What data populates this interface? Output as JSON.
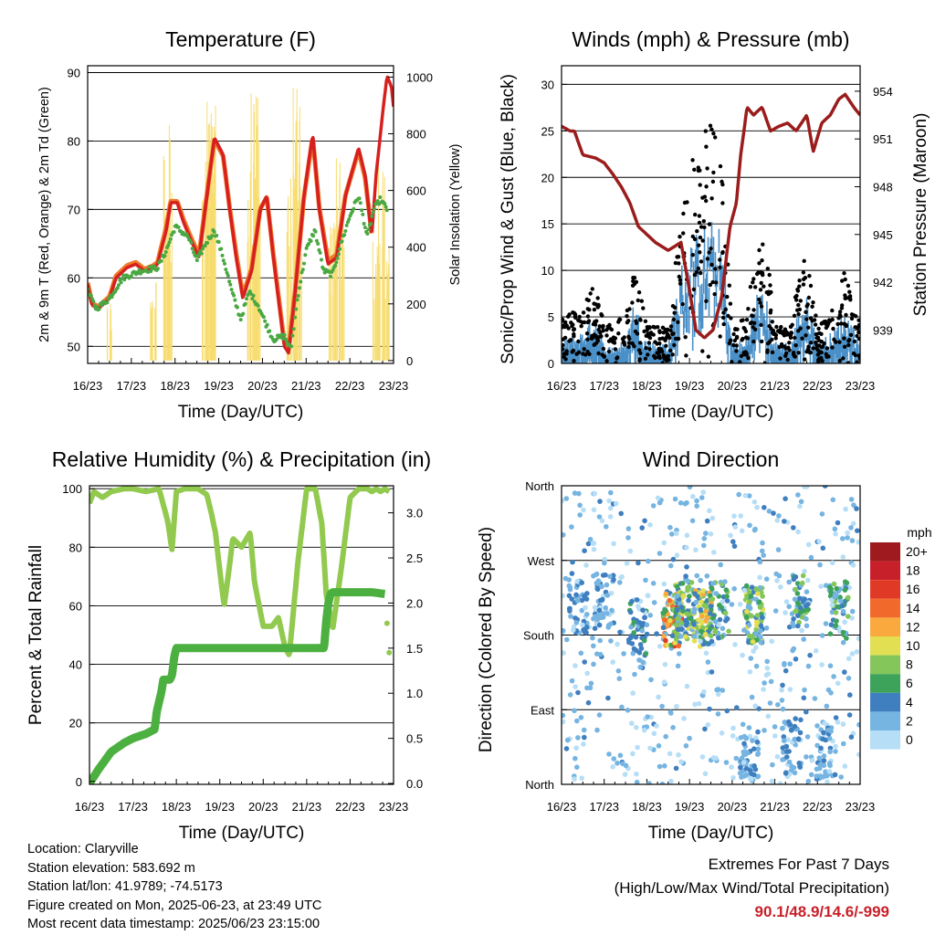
{
  "colors": {
    "t2m": "#d62020",
    "t9m": "#f07a2a",
    "td": "#4aa843",
    "solar": "#f7dc6f",
    "wind": "#4a90c8",
    "gust": "#000000",
    "pressure": "#9b1c1c",
    "rh": "#92c94f",
    "precip": "#4cb040",
    "extremes": "#c8202a"
  },
  "x_ticks": [
    "16/23",
    "17/23",
    "18/23",
    "19/23",
    "20/23",
    "21/23",
    "22/23",
    "23/23"
  ],
  "chart_data": [
    {
      "id": "temperature",
      "type": "line",
      "title": "Temperature (F)",
      "xlabel": "Time (Day/UTC)",
      "ylabel": "2m & 9m T (Red, Orange) & 2m Td (Green)",
      "y2label": "Solar Insolation (Yellow)",
      "ylim": [
        47.5,
        91
      ],
      "yticks": [
        50,
        60,
        70,
        80,
        90
      ],
      "y2lim": [
        -10,
        1040
      ],
      "y2ticks": [
        0,
        200,
        400,
        600,
        800,
        1000
      ],
      "gridlines": [
        50,
        60,
        70,
        80,
        90
      ],
      "series": [
        {
          "key": "t2m",
          "x": [
            0.0,
            0.1,
            0.25,
            0.5,
            0.65,
            0.9,
            1.1,
            1.3,
            1.5,
            1.6,
            1.8,
            1.9,
            2.05,
            2.2,
            2.4,
            2.55,
            2.75,
            2.9,
            3.1,
            3.25,
            3.4,
            3.55,
            3.75,
            3.95,
            4.1,
            4.25,
            4.5,
            4.6,
            4.75,
            4.95,
            5.15,
            5.3,
            5.5,
            5.7,
            5.9,
            6.2,
            6.35,
            6.5,
            6.6,
            6.75,
            6.85,
            6.95,
            7.0
          ],
          "y": [
            59,
            56,
            55.5,
            57,
            60,
            61.5,
            62,
            61,
            61.5,
            62,
            67,
            71,
            71,
            68,
            65,
            63,
            73,
            80.5,
            78,
            70,
            63,
            57,
            61,
            70,
            72,
            63,
            50,
            49,
            58,
            72,
            81,
            70,
            62,
            63,
            72,
            79,
            75,
            66,
            75,
            84,
            89.5,
            88,
            85
          ]
        },
        {
          "key": "t9m",
          "x": [
            0.0,
            0.1,
            0.25,
            0.5,
            0.65,
            0.9,
            1.1,
            1.3,
            1.5,
            1.6,
            1.8,
            1.9,
            2.05,
            2.2,
            2.4,
            2.55,
            2.75,
            2.9,
            3.1,
            3.25,
            3.4,
            3.55,
            3.75,
            3.95,
            4.1,
            4.25,
            4.5,
            4.6,
            4.75,
            4.95,
            5.15,
            5.3,
            5.5,
            5.7,
            5.9,
            6.2,
            6.35,
            6.5
          ],
          "y": [
            59.3,
            56.3,
            55.8,
            57.3,
            60.3,
            61.8,
            62.3,
            61.3,
            61.8,
            62.3,
            67.5,
            71.2,
            71.2,
            68.4,
            65.4,
            63.4,
            73.3,
            80.2,
            77.8,
            70.3,
            63.5,
            57.5,
            61.3,
            70.1,
            71.8,
            63.4,
            50.5,
            49.6,
            58.3,
            71.8,
            80.6,
            70.3,
            62.5,
            63.4,
            72.1,
            78.6,
            74.6,
            66.5
          ]
        },
        {
          "key": "td",
          "x": [
            0.0,
            0.2,
            0.5,
            0.8,
            1.2,
            1.6,
            1.8,
            2.0,
            2.3,
            2.5,
            2.7,
            2.9,
            3.1,
            3.3,
            3.5,
            3.7,
            3.9,
            4.1,
            4.25,
            4.5,
            4.65,
            4.8,
            5.0,
            5.2,
            5.4,
            5.6,
            5.8,
            6.0,
            6.2,
            6.4,
            6.55,
            6.7,
            6.85
          ],
          "y": [
            58,
            55.5,
            57,
            60,
            61,
            61.5,
            64,
            67.5,
            66,
            62.5,
            65,
            67,
            63,
            58,
            54,
            58,
            56,
            53,
            51,
            51.5,
            49.5,
            57,
            64,
            67,
            61,
            60.5,
            65,
            69,
            72,
            66,
            70,
            71.5,
            70
          ]
        },
        {
          "key": "solar_peaks",
          "x": [
            0.5,
            1.5,
            1.75,
            1.88,
            2.7,
            2.8,
            2.88,
            3.7,
            3.8,
            3.88,
            4.62,
            4.72,
            4.82,
            5.6,
            5.72,
            5.82,
            6.6,
            6.72,
            6.82
          ],
          "y": [
            200,
            300,
            780,
            860,
            720,
            950,
            900,
            700,
            1010,
            940,
            650,
            1000,
            900,
            500,
            780,
            600,
            420,
            740,
            500
          ]
        }
      ]
    },
    {
      "id": "winds",
      "type": "scatter",
      "title": "Winds (mph) & Pressure (mb)",
      "xlabel": "Time (Day/UTC)",
      "ylabel": "Sonic/Prop Wind & Gust (Blue, Black)",
      "y2label": "Station Pressure (Maroon)",
      "ylim": [
        0,
        32
      ],
      "yticks": [
        0,
        5,
        10,
        15,
        20,
        25,
        30
      ],
      "y2lim": [
        936.9,
        955.6
      ],
      "y2ticks": [
        939,
        942,
        945,
        948,
        951,
        954
      ],
      "gridlines": [
        5,
        10,
        15,
        20,
        25,
        30
      ],
      "series": [
        {
          "key": "pressure",
          "x": [
            0.0,
            0.2,
            0.3,
            0.5,
            0.8,
            1.0,
            1.2,
            1.4,
            1.6,
            1.8,
            2.0,
            2.2,
            2.5,
            2.8,
            3.0,
            3.15,
            3.35,
            3.55,
            3.75,
            3.95,
            4.1,
            4.2,
            4.35,
            4.5,
            4.7,
            4.9,
            5.1,
            5.3,
            5.5,
            5.75,
            5.9,
            6.1,
            6.3,
            6.5,
            6.65,
            6.85,
            7.0
          ],
          "y": [
            951.8,
            951.5,
            951.5,
            950.0,
            949.8,
            949.5,
            948.8,
            948.0,
            947.0,
            945.5,
            945.0,
            944.5,
            944.0,
            944.5,
            941.5,
            939.0,
            938.5,
            939.0,
            941.0,
            945.5,
            947.0,
            950.0,
            953.0,
            952.5,
            953.0,
            951.5,
            951.8,
            952.0,
            951.5,
            952.5,
            950.2,
            952.0,
            952.5,
            953.5,
            953.8,
            953.0,
            952.5
          ]
        },
        {
          "key": "wind_envelope",
          "x": [
            0.0,
            0.5,
            0.8,
            1.0,
            1.5,
            1.7,
            2.0,
            2.5,
            2.8,
            3.0,
            3.2,
            3.5,
            3.75,
            4.0,
            4.3,
            4.6,
            4.8,
            5.0,
            5.4,
            5.6,
            5.8,
            6.0,
            6.4,
            6.6,
            6.8,
            7.0
          ],
          "y": [
            2,
            3,
            5,
            1.5,
            2,
            6,
            2,
            2,
            9,
            11,
            12,
            13,
            12,
            2,
            2,
            7,
            6,
            2,
            2,
            6,
            6,
            2,
            3,
            5,
            4,
            2
          ]
        },
        {
          "key": "gust_envelope",
          "x": [
            0.0,
            0.5,
            0.8,
            1.0,
            1.5,
            1.7,
            2.0,
            2.5,
            2.8,
            3.0,
            3.2,
            3.5,
            3.75,
            4.0,
            4.3,
            4.6,
            4.8,
            5.0,
            5.4,
            5.6,
            5.8,
            6.0,
            6.4,
            6.6,
            6.8,
            7.0
          ],
          "y": [
            5,
            6,
            9,
            4,
            5,
            11,
            4,
            4,
            16,
            22,
            24,
            26,
            22,
            4,
            5,
            14,
            13,
            4,
            4,
            12,
            10,
            4,
            6,
            10,
            9,
            4
          ]
        }
      ]
    },
    {
      "id": "rh_precip",
      "type": "line",
      "title": "Relative Humidity (%) & Precipitation (in)",
      "xlabel": "Time (Day/UTC)",
      "ylabel": "Percent & Total Rainfall",
      "ylim": [
        -1,
        101
      ],
      "yticks": [
        0,
        20,
        40,
        60,
        80,
        100
      ],
      "y2lim": [
        -0.01,
        3.3
      ],
      "y2ticks": [
        0.0,
        0.5,
        1.0,
        1.5,
        2.0,
        2.5,
        3.0
      ],
      "gridlines": [
        20,
        40,
        60,
        80,
        100
      ],
      "series": [
        {
          "key": "rh",
          "x": [
            0.0,
            0.1,
            0.3,
            0.5,
            0.8,
            1.0,
            1.3,
            1.6,
            1.8,
            1.9,
            2.0,
            2.2,
            2.5,
            2.7,
            2.8,
            2.9,
            3.0,
            3.1,
            3.2,
            3.3,
            3.5,
            3.7,
            3.8,
            4.0,
            4.2,
            4.35,
            4.5,
            4.6,
            4.8,
            5.0,
            5.2,
            5.35,
            5.45,
            5.6,
            5.8,
            6.0,
            6.2,
            6.4,
            6.5,
            6.6,
            6.7,
            6.8,
            6.9
          ],
          "y": [
            95,
            99,
            97,
            99,
            100,
            100,
            99,
            100,
            89,
            79,
            99,
            100,
            100,
            98,
            92,
            85,
            72,
            60,
            71,
            83,
            80,
            85,
            68,
            53,
            53,
            56,
            46,
            43,
            75,
            100,
            100,
            88,
            64,
            52,
            73,
            97,
            100,
            100,
            99,
            100,
            99,
            100,
            99
          ]
        },
        {
          "key": "precip",
          "x": [
            0.0,
            0.2,
            0.5,
            0.8,
            1.0,
            1.3,
            1.5,
            1.55,
            1.65,
            1.7,
            1.85,
            1.9,
            1.95,
            2.0,
            2.5,
            3.0,
            4.0,
            5.0,
            5.4,
            5.45,
            5.5,
            5.55,
            5.6,
            6.0,
            6.5,
            6.8
          ],
          "y": [
            0.0,
            0.15,
            0.35,
            0.45,
            0.5,
            0.55,
            0.6,
            0.8,
            1.0,
            1.15,
            1.15,
            1.2,
            1.4,
            1.5,
            1.5,
            1.5,
            1.5,
            1.5,
            1.5,
            1.8,
            2.0,
            2.1,
            2.12,
            2.12,
            2.12,
            2.1
          ]
        }
      ]
    },
    {
      "id": "wind_direction",
      "type": "scatter",
      "title": "Wind Direction",
      "xlabel": "Time (Day/UTC)",
      "ylabel": "Direction (Colored By Speed)",
      "direction_ticks": [
        "North",
        "East",
        "South",
        "West",
        "North"
      ],
      "direction_values": [
        0,
        90,
        180,
        270,
        360
      ],
      "gridlines": [
        90,
        180,
        270
      ],
      "colorbar_unit": "mph",
      "colorbar_labels": [
        "20+",
        "18",
        "16",
        "14",
        "12",
        "10",
        "8",
        "6",
        "4",
        "2",
        "0"
      ],
      "colorbar_colors": [
        "#9e1a1e",
        "#c8202a",
        "#e03a26",
        "#f26a2b",
        "#f9a93d",
        "#e2df52",
        "#85c65a",
        "#3da25a",
        "#3f7fbf",
        "#76b4e1",
        "#b6def6"
      ],
      "clusters": [
        {
          "day": 0.4,
          "dir": 215,
          "max_mph": 4
        },
        {
          "day": 1.0,
          "dir": 220,
          "max_mph": 4
        },
        {
          "day": 1.8,
          "dir": 190,
          "max_mph": 6
        },
        {
          "day": 2.6,
          "dir": 200,
          "max_mph": 16
        },
        {
          "day": 2.9,
          "dir": 210,
          "max_mph": 10
        },
        {
          "day": 3.3,
          "dir": 200,
          "max_mph": 12
        },
        {
          "day": 3.7,
          "dir": 210,
          "max_mph": 8
        },
        {
          "day": 4.5,
          "dir": 205,
          "max_mph": 10
        },
        {
          "day": 5.6,
          "dir": 220,
          "max_mph": 8
        },
        {
          "day": 6.5,
          "dir": 210,
          "max_mph": 8
        },
        {
          "day": 4.4,
          "dir": 40,
          "max_mph": 4
        },
        {
          "day": 5.4,
          "dir": 45,
          "max_mph": 4
        },
        {
          "day": 6.2,
          "dir": 40,
          "max_mph": 4
        }
      ]
    }
  ],
  "footer": {
    "location": "Location: Claryville",
    "elevation": "Station elevation: 583.692 m",
    "latlon": "Station lat/lon: 41.9789; -74.5173",
    "created": "Figure created on Mon, 2025-06-23, at 23:49 UTC",
    "recent": "Most recent data timestamp: 2025/06/23 23:15:00"
  },
  "extremes": {
    "title": "Extremes For Past 7 Days",
    "subtitle": "(High/Low/Max Wind/Total Precipitation)",
    "values": "90.1/48.9/14.6/-999"
  }
}
